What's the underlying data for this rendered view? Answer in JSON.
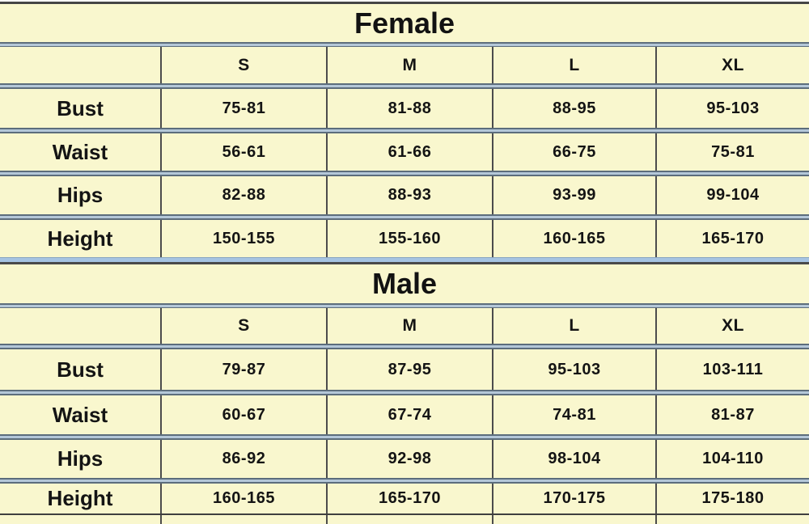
{
  "colors": {
    "table_background": "#F9F7CE",
    "grid_line": "#4C4C4C",
    "separator_edge": "#5C6D7C",
    "separator_fill": "#B4C7D8",
    "section_divider_blue": "#A6C4E2",
    "outer_border": "#454545",
    "text": "#141414",
    "page_background": "#FFFFFF"
  },
  "sections": [
    {
      "title": "Female",
      "header": [
        "S",
        "M",
        "L",
        "XL"
      ],
      "rows": [
        {
          "label": "Bust",
          "values": [
            "75-81",
            "81-88",
            "88-95",
            "95-103"
          ]
        },
        {
          "label": "Waist",
          "values": [
            "56-61",
            "61-66",
            "66-75",
            "75-81"
          ]
        },
        {
          "label": "Hips",
          "values": [
            "82-88",
            "88-93",
            "93-99",
            "99-104"
          ]
        },
        {
          "label": "Height",
          "values": [
            "150-155",
            "155-160",
            "160-165",
            "165-170"
          ]
        }
      ]
    },
    {
      "title": "Male",
      "header": [
        "S",
        "M",
        "L",
        "XL"
      ],
      "rows": [
        {
          "label": "Bust",
          "values": [
            "79-87",
            "87-95",
            "95-103",
            "103-111"
          ]
        },
        {
          "label": "Waist",
          "values": [
            "60-67",
            "67-74",
            "74-81",
            "81-87"
          ]
        },
        {
          "label": "Hips",
          "values": [
            "86-92",
            "92-98",
            "98-104",
            "104-110"
          ]
        },
        {
          "label": "Height",
          "values": [
            "160-165",
            "165-170",
            "170-175",
            "175-180"
          ]
        }
      ]
    }
  ]
}
